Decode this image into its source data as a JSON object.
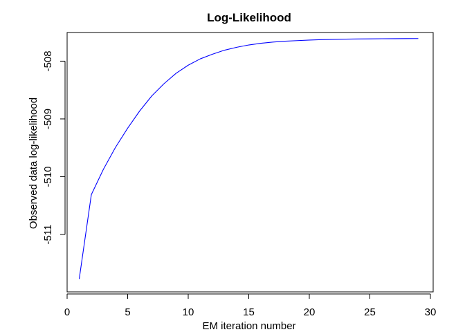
{
  "chart_data": {
    "type": "line",
    "title": "Log-Likelihood",
    "xlabel": "EM iteration number",
    "ylabel": "Observed data log-likelihood",
    "xlim": [
      0,
      30
    ],
    "ylim": [
      -511.85,
      -507.6
    ],
    "x_ticks": [
      0,
      5,
      10,
      15,
      20,
      25,
      30
    ],
    "y_ticks": [
      -508,
      -509,
      -510,
      -511
    ],
    "grid": false,
    "legend": "none",
    "line_color": "#0000FF",
    "series": [
      {
        "x": [
          1,
          2,
          3,
          4,
          5,
          6,
          7,
          8,
          9,
          10,
          11,
          12,
          13,
          14,
          15,
          16,
          17,
          18,
          19,
          20,
          21,
          22,
          23,
          24,
          25,
          26,
          27,
          28,
          29
        ],
        "values": [
          -511.77,
          -510.31,
          -509.87,
          -509.49,
          -509.16,
          -508.86,
          -508.6,
          -508.39,
          -508.21,
          -508.07,
          -507.96,
          -507.88,
          -507.81,
          -507.76,
          -507.72,
          -507.69,
          -507.67,
          -507.655,
          -507.645,
          -507.635,
          -507.628,
          -507.623,
          -507.619,
          -507.616,
          -507.614,
          -507.612,
          -507.611,
          -507.61,
          -507.609
        ]
      }
    ]
  }
}
